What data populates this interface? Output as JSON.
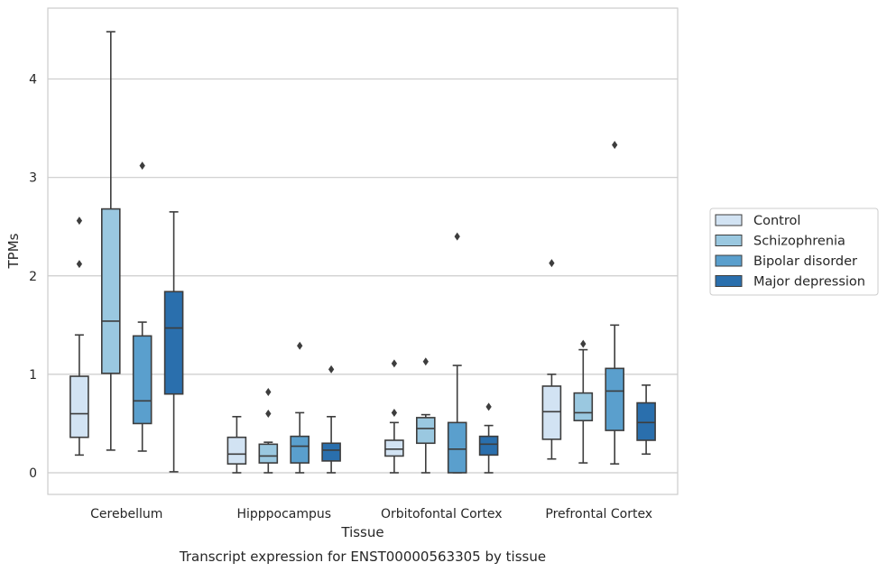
{
  "caption": "Transcript expression for ENST00000563305 by tissue",
  "chart_data": {
    "type": "box",
    "xlabel": "Tissue",
    "ylabel": "TPMs",
    "ylim": [
      -0.22,
      4.72
    ],
    "yticks": [
      "0",
      "1",
      "2",
      "3",
      "4"
    ],
    "ytick_values": [
      0,
      1,
      2,
      3,
      4
    ],
    "grid": "horizontal",
    "legend_position": "right",
    "categories": [
      "Cerebellum",
      "Hipppocampus",
      "Orbitofontal Cortex",
      "Prefrontal Cortex"
    ],
    "series": [
      {
        "name": "Control",
        "color": "#d2e3f3",
        "boxes": [
          {
            "whislo": 0.18,
            "q1": 0.36,
            "med": 0.6,
            "q3": 0.98,
            "whishi": 1.4,
            "fliers": [
              2.12,
              2.56
            ]
          },
          {
            "whislo": 0.0,
            "q1": 0.09,
            "med": 0.19,
            "q3": 0.36,
            "whishi": 0.57,
            "fliers": []
          },
          {
            "whislo": 0.0,
            "q1": 0.17,
            "med": 0.24,
            "q3": 0.33,
            "whishi": 0.51,
            "fliers": [
              0.61,
              1.11
            ]
          },
          {
            "whislo": 0.14,
            "q1": 0.34,
            "med": 0.62,
            "q3": 0.88,
            "whishi": 1.0,
            "fliers": [
              2.13
            ]
          }
        ]
      },
      {
        "name": "Schizophrenia",
        "color": "#9ac8e0",
        "boxes": [
          {
            "whislo": 0.23,
            "q1": 1.01,
            "med": 1.54,
            "q3": 2.68,
            "whishi": 4.48,
            "fliers": []
          },
          {
            "whislo": 0.0,
            "q1": 0.1,
            "med": 0.17,
            "q3": 0.29,
            "whishi": 0.31,
            "fliers": [
              0.6,
              0.82
            ]
          },
          {
            "whislo": 0.0,
            "q1": 0.3,
            "med": 0.45,
            "q3": 0.56,
            "whishi": 0.59,
            "fliers": [
              1.13
            ]
          },
          {
            "whislo": 0.1,
            "q1": 0.53,
            "med": 0.61,
            "q3": 0.81,
            "whishi": 1.25,
            "fliers": [
              1.31
            ]
          }
        ]
      },
      {
        "name": "Bipolar disorder",
        "color": "#5a9fcd",
        "boxes": [
          {
            "whislo": 0.22,
            "q1": 0.5,
            "med": 0.73,
            "q3": 1.39,
            "whishi": 1.53,
            "fliers": [
              3.12
            ]
          },
          {
            "whislo": 0.0,
            "q1": 0.1,
            "med": 0.27,
            "q3": 0.37,
            "whishi": 0.61,
            "fliers": [
              1.29
            ]
          },
          {
            "whislo": 0.0,
            "q1": 0.0,
            "med": 0.24,
            "q3": 0.51,
            "whishi": 1.09,
            "fliers": [
              2.4
            ]
          },
          {
            "whislo": 0.09,
            "q1": 0.43,
            "med": 0.83,
            "q3": 1.06,
            "whishi": 1.5,
            "fliers": [
              3.33
            ]
          }
        ]
      },
      {
        "name": "Major depression",
        "color": "#2a6fad",
        "boxes": [
          {
            "whislo": 0.01,
            "q1": 0.8,
            "med": 1.47,
            "q3": 1.84,
            "whishi": 2.65,
            "fliers": []
          },
          {
            "whislo": 0.0,
            "q1": 0.12,
            "med": 0.23,
            "q3": 0.3,
            "whishi": 0.57,
            "fliers": [
              1.05
            ]
          },
          {
            "whislo": 0.0,
            "q1": 0.18,
            "med": 0.29,
            "q3": 0.37,
            "whishi": 0.48,
            "fliers": [
              0.67
            ]
          },
          {
            "whislo": 0.19,
            "q1": 0.33,
            "med": 0.51,
            "q3": 0.71,
            "whishi": 0.89,
            "fliers": []
          }
        ]
      }
    ]
  }
}
